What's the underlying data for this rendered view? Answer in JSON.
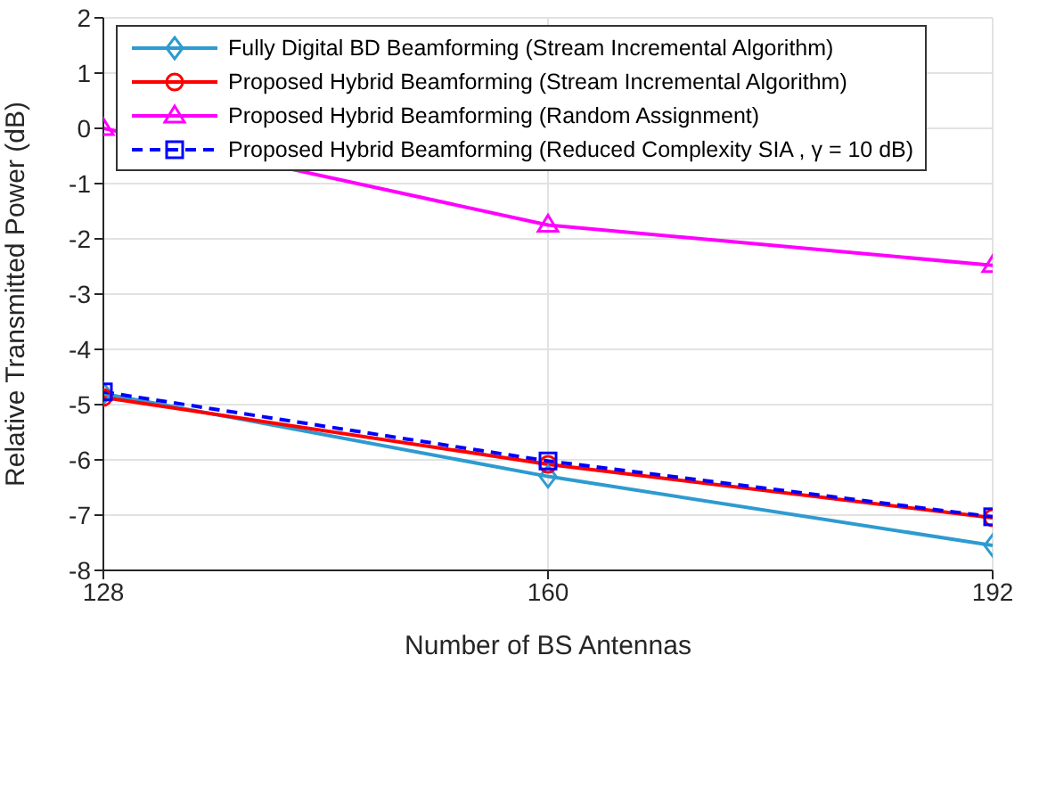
{
  "chart_data": {
    "type": "line",
    "xlabel": "Number of BS Antennas",
    "ylabel": "Relative Transmitted Power (dB)",
    "x": [
      128,
      160,
      192
    ],
    "xlim": [
      128,
      192
    ],
    "xticks": [
      128,
      160,
      192
    ],
    "ylim": [
      -8,
      2
    ],
    "yticks": [
      -8,
      -7,
      -6,
      -5,
      -4,
      -3,
      -2,
      -1,
      0,
      1,
      2
    ],
    "grid": true,
    "legend": "top",
    "series": [
      {
        "name": "Fully Digital BD Beamforming (Stream Incremental Algorithm)",
        "color": "#2e9bd0",
        "values": [
          -4.8,
          -6.3,
          -7.55
        ],
        "marker": "diamond",
        "line_style": "solid"
      },
      {
        "name": "Proposed Hybrid Beamforming (Stream Incremental Algorithm)",
        "color": "#ff0000",
        "values": [
          -4.87,
          -6.08,
          -7.05
        ],
        "marker": "circle",
        "line_style": "solid"
      },
      {
        "name": "Proposed Hybrid Beamforming (Random Assignment)",
        "color": "#ff00ff",
        "values": [
          0,
          -1.75,
          -2.48
        ],
        "marker": "triangle",
        "line_style": "solid"
      },
      {
        "name": "Proposed Hybrid Beamforming (Reduced Complexity SIA , γ = 10 dB)",
        "color": "#0000ff",
        "values": [
          -4.77,
          -6.02,
          -7.03
        ],
        "marker": "square",
        "line_style": "dashed"
      }
    ]
  }
}
